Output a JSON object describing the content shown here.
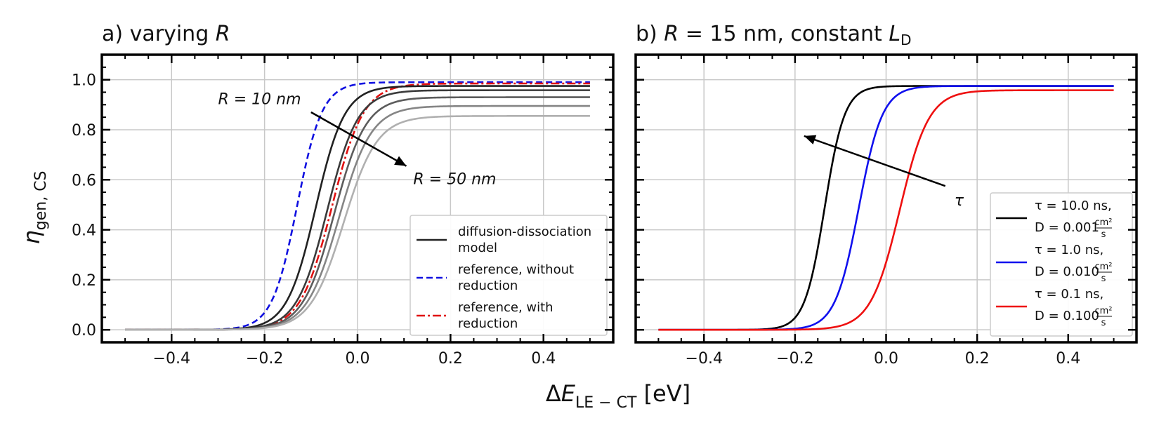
{
  "chart_data": [
    {
      "type": "line",
      "panel": "a",
      "title_prefix": "a) varying ",
      "title_var": "R",
      "xlabel_main": "ΔE",
      "xlabel_sub": "LE − CT",
      "xlabel_unit": " [eV]",
      "ylabel_main": "η",
      "ylabel_sub": "gen, CS",
      "xlim": [
        -0.55,
        0.55
      ],
      "ylim": [
        -0.05,
        1.1
      ],
      "xticks": [
        -0.4,
        -0.2,
        0.0,
        0.2,
        0.4
      ],
      "xtick_labels": [
        "−0.4",
        "−0.2",
        "0.0",
        "0.2",
        "0.4"
      ],
      "yticks": [
        0.0,
        0.2,
        0.4,
        0.6,
        0.8,
        1.0
      ],
      "ytick_labels": [
        "0.0",
        "0.2",
        "0.4",
        "0.6",
        "0.8",
        "1.0"
      ],
      "grid": true,
      "series": [
        {
          "name": "reference, without reduction",
          "style": "dashed",
          "color": "#1010e0",
          "x0": -0.13,
          "w": 0.027,
          "plateau": 0.99
        },
        {
          "name": "reference, with reduction",
          "style": "dashdot",
          "color": "#e01010",
          "x0": -0.055,
          "w": 0.034,
          "plateau": 0.985
        },
        {
          "name": "diffusion-dissociation model R=10nm",
          "style": "solid",
          "color": "#222222",
          "x0": -0.09,
          "w": 0.031,
          "plateau": 0.975
        },
        {
          "name": "diffusion-dissociation model R=20nm",
          "style": "solid",
          "color": "#3a3a3a",
          "x0": -0.065,
          "w": 0.033,
          "plateau": 0.958
        },
        {
          "name": "diffusion-dissociation model R=30nm",
          "style": "solid",
          "color": "#5c5c5c",
          "x0": -0.05,
          "w": 0.034,
          "plateau": 0.93
        },
        {
          "name": "diffusion-dissociation model R=40nm",
          "style": "solid",
          "color": "#858585",
          "x0": -0.04,
          "w": 0.035,
          "plateau": 0.895
        },
        {
          "name": "diffusion-dissociation model R=50nm",
          "style": "solid",
          "color": "#b0b0b0",
          "x0": -0.03,
          "w": 0.036,
          "plateau": 0.855
        }
      ],
      "annotations": [
        {
          "text": "R = 10 nm",
          "x": -0.3,
          "y": 0.925
        },
        {
          "text": "R = 50 nm",
          "x": 0.12,
          "y": 0.605
        }
      ],
      "arrow": {
        "from": [
          -0.1,
          0.87
        ],
        "to": [
          0.105,
          0.655
        ]
      },
      "legend": {
        "placement": "lower-right",
        "entries": [
          {
            "lines": [
              "diffusion-dissociation",
              "model"
            ],
            "style": "solid",
            "color": "#222222"
          },
          {
            "lines": [
              "reference, without",
              "reduction"
            ],
            "style": "dashed",
            "color": "#1010e0"
          },
          {
            "lines": [
              "reference, with",
              "reduction"
            ],
            "style": "dashdot",
            "color": "#e01010"
          }
        ]
      }
    },
    {
      "type": "line",
      "panel": "b",
      "title_prefix": "b) ",
      "title_eq": "R = 15 nm, constant ",
      "title_var": "L",
      "title_sub": "D",
      "xlim": [
        -0.55,
        0.55
      ],
      "ylim": [
        -0.05,
        1.1
      ],
      "xticks": [
        -0.4,
        -0.2,
        0.0,
        0.2,
        0.4
      ],
      "xtick_labels": [
        "−0.4",
        "−0.2",
        "0.0",
        "0.2",
        "0.4"
      ],
      "grid": true,
      "series": [
        {
          "name": "τ = 10.0 ns, D = 0.001 cm²/s",
          "style": "solid",
          "color": "#000000",
          "x0": -0.135,
          "w": 0.022,
          "plateau": 0.975
        },
        {
          "name": "τ = 1.0 ns, D = 0.010 cm²/s",
          "style": "solid",
          "color": "#1010ee",
          "x0": -0.06,
          "w": 0.026,
          "plateau": 0.975
        },
        {
          "name": "τ = 0.1 ns, D = 0.100 cm²/s",
          "style": "solid",
          "color": "#ee1010",
          "x0": 0.03,
          "w": 0.032,
          "plateau": 0.958
        }
      ],
      "annotations": [
        {
          "text": "τ",
          "x": 0.15,
          "y": 0.52
        }
      ],
      "arrow": {
        "from": [
          0.13,
          0.575
        ],
        "to": [
          -0.18,
          0.775
        ]
      },
      "legend": {
        "placement": "lower-right",
        "entries": [
          {
            "line1": "τ = 10.0 ns,",
            "line2": "D = 0.001",
            "unit_num": "cm²",
            "unit_den": "s",
            "color": "#000000"
          },
          {
            "line1": "τ = 1.0 ns,",
            "line2": "D = 0.010",
            "unit_num": "cm²",
            "unit_den": "s",
            "color": "#1010ee"
          },
          {
            "line1": "τ = 0.1 ns,",
            "line2": "D = 0.100",
            "unit_num": "cm²",
            "unit_den": "s",
            "color": "#ee1010"
          }
        ]
      }
    }
  ]
}
